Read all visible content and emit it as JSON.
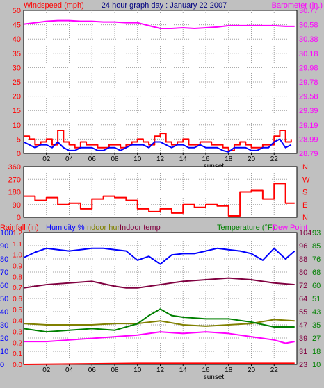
{
  "header": {
    "title_left": "Windspeed (mph)",
    "title_center": "24 hour graph day : January 22 2007",
    "title_right": "Barometer (in.)"
  },
  "colors": {
    "background": "#c0c0c0",
    "plot_bg": "#ffffff",
    "wind": "#ff0000",
    "gust": "#ff0000",
    "avg_wind": "#0000ff",
    "barometer": "#ff00ff",
    "direction": "#ff0000",
    "humidity": "#0000ff",
    "indoor_humidity": "#808000",
    "indoor_temp": "#800040",
    "temperature": "#008000",
    "dew_point": "#ff00ff",
    "rainfall": "#ff0000",
    "grid": "#a0a0a0"
  },
  "chart_data": [
    {
      "type": "line",
      "id": "wind_baro",
      "title": "24 hour graph day : January 22 2007",
      "x_ticks": [
        "02",
        "04",
        "06",
        "08",
        "10",
        "12",
        "14",
        "16",
        "18",
        "20",
        "22"
      ],
      "x_annotation": "sunset",
      "y_left": {
        "label": "Windspeed (mph)",
        "ticks": [
          "0",
          "5",
          "10",
          "15",
          "20",
          "25",
          "30",
          "35",
          "40",
          "45",
          "50"
        ],
        "lim": [
          0,
          50
        ]
      },
      "y_right": {
        "label": "Barometer (in.)",
        "ticks": [
          "28.79",
          "28.99",
          "29.19",
          "29.39",
          "29.58",
          "29.78",
          "29.98",
          "30.18",
          "30.38",
          "30.58",
          "30.77"
        ],
        "lim": [
          28.79,
          30.77
        ]
      },
      "grid": true,
      "series": [
        {
          "name": "Windspeed",
          "axis": "left",
          "x": [
            0,
            0.5,
            1,
            1.5,
            2,
            2.5,
            3,
            3.5,
            4,
            4.5,
            5,
            5.5,
            6,
            6.5,
            7,
            7.5,
            8,
            8.5,
            9,
            9.5,
            10,
            10.5,
            11,
            11.5,
            12,
            12.5,
            13,
            13.5,
            14,
            14.5,
            15,
            15.5,
            16,
            16.5,
            17,
            17.5,
            18,
            18.5,
            19,
            19.5,
            20,
            20.5,
            21,
            21.5,
            22,
            22.5,
            23,
            23.5
          ],
          "values": [
            6,
            5,
            3,
            4,
            5,
            3,
            8,
            4,
            3,
            2,
            4,
            3,
            3,
            2,
            2,
            3,
            3,
            2,
            3,
            4,
            5,
            4,
            3,
            6,
            7,
            4,
            3,
            4,
            5,
            3,
            3,
            4,
            4,
            3,
            3,
            2,
            1,
            3,
            4,
            3,
            2,
            2,
            3,
            3,
            6,
            8,
            4,
            5
          ]
        },
        {
          "name": "Avg wind",
          "axis": "left",
          "x": [
            0,
            0.5,
            1,
            1.5,
            2,
            2.5,
            3,
            3.5,
            4,
            4.5,
            5,
            5.5,
            6,
            6.5,
            7,
            7.5,
            8,
            8.5,
            9,
            9.5,
            10,
            10.5,
            11,
            11.5,
            12,
            12.5,
            13,
            13.5,
            14,
            14.5,
            15,
            15.5,
            16,
            16.5,
            17,
            17.5,
            18,
            18.5,
            19,
            19.5,
            20,
            20.5,
            21,
            21.5,
            22,
            22.5,
            23,
            23.5
          ],
          "values": [
            4,
            3,
            2,
            3,
            3,
            2,
            4,
            2,
            1,
            1,
            2,
            2,
            2,
            1,
            1,
            2,
            2,
            1,
            2,
            3,
            3,
            3,
            2,
            4,
            4,
            3,
            2,
            3,
            3,
            2,
            2,
            3,
            2,
            2,
            2,
            1,
            0.5,
            2,
            2,
            2,
            1,
            1,
            2,
            2,
            4,
            5,
            2,
            3
          ]
        },
        {
          "name": "Barometer",
          "axis": "right",
          "x": [
            0,
            1,
            2,
            3,
            4,
            5,
            6,
            7,
            8,
            9,
            10,
            11,
            12,
            13,
            14,
            15,
            16,
            17,
            18,
            19,
            20,
            21,
            22,
            23,
            23.8
          ],
          "values": [
            30.58,
            30.6,
            30.62,
            30.63,
            30.63,
            30.62,
            30.62,
            30.61,
            30.61,
            30.6,
            30.6,
            30.56,
            30.52,
            30.52,
            30.53,
            30.52,
            30.53,
            30.54,
            30.56,
            30.56,
            30.56,
            30.56,
            30.56,
            30.55,
            30.55
          ]
        }
      ]
    },
    {
      "type": "line",
      "id": "direction",
      "x_ticks": [],
      "y_left": {
        "ticks": [
          "0",
          "90",
          "180",
          "270",
          "360"
        ],
        "lim": [
          0,
          360
        ]
      },
      "y_right": {
        "ticks": [
          "N",
          "E",
          "S",
          "W",
          "N"
        ]
      },
      "grid": true,
      "series": [
        {
          "name": "Wind direction",
          "x": [
            0,
            1,
            2,
            3,
            4,
            5,
            6,
            7,
            8,
            9,
            10,
            11,
            12,
            13,
            14,
            15,
            16,
            17,
            18,
            19,
            20,
            21,
            22,
            23,
            23.8
          ],
          "values": [
            150,
            120,
            140,
            90,
            100,
            60,
            130,
            150,
            140,
            120,
            60,
            40,
            60,
            30,
            90,
            70,
            90,
            80,
            10,
            180,
            190,
            130,
            240,
            100,
            100
          ]
        }
      ]
    },
    {
      "type": "line",
      "id": "humidity_temp",
      "x_ticks": [
        "02",
        "04",
        "06",
        "08",
        "10",
        "12",
        "14",
        "16",
        "18",
        "20",
        "22"
      ],
      "x_annotation": "sunset",
      "legend": [
        "Rainfall (in)",
        "Humidity %",
        "Indoor hum",
        "Indoor temp",
        "Temperature (°F)",
        "Dew Point"
      ],
      "y_rain": {
        "label": "Rainfall (in)",
        "ticks": [
          "0.0",
          "0.1",
          "0.2",
          "0.3",
          "0.4",
          "0.5",
          "0.6",
          "0.7",
          "0.8",
          "0.9",
          "1.0",
          "1.1",
          "1.2"
        ],
        "lim": [
          0,
          1.2
        ]
      },
      "y_humidity": {
        "label": "Humidity %",
        "ticks": [
          "0",
          "10",
          "20",
          "30",
          "40",
          "50",
          "60",
          "70",
          "80",
          "90",
          "100"
        ],
        "lim": [
          0,
          100
        ]
      },
      "y_temp_outer": {
        "ticks": [
          "23",
          "31",
          "39",
          "47",
          "55",
          "64",
          "72",
          "80",
          "88",
          "96",
          "104"
        ],
        "lim": [
          23,
          104
        ]
      },
      "y_temp_inner": {
        "ticks": [
          "10",
          "18",
          "27",
          "35",
          "43",
          "51",
          "60",
          "68",
          "76",
          "85",
          "93"
        ],
        "lim": [
          10,
          93
        ]
      },
      "grid": true,
      "series": [
        {
          "name": "Humidity %",
          "axis": "humidity",
          "x": [
            0,
            1,
            2,
            3,
            4,
            5,
            6,
            7,
            8,
            9,
            10,
            11,
            12,
            13,
            14,
            15,
            16,
            17,
            18,
            19,
            20,
            21,
            22,
            23,
            23.8
          ],
          "values": [
            81,
            85,
            88,
            87,
            86,
            87,
            88,
            88,
            87,
            86,
            79,
            82,
            76,
            83,
            84,
            84,
            86,
            88,
            87,
            86,
            84,
            79,
            88,
            80,
            86
          ]
        },
        {
          "name": "Indoor hum",
          "axis": "humidity",
          "x": [
            0,
            2,
            4,
            6,
            8,
            10,
            12,
            14,
            16,
            18,
            20,
            22,
            23.8
          ],
          "values": [
            31,
            30,
            30,
            30,
            31,
            31,
            33,
            30,
            29,
            30,
            31,
            34,
            33
          ]
        },
        {
          "name": "Indoor temp",
          "axis": "temp_outer",
          "x": [
            0,
            2,
            4,
            6,
            8,
            9,
            10,
            12,
            14,
            16,
            18,
            20,
            22,
            23.8
          ],
          "values": [
            70,
            72,
            73,
            74,
            71,
            70,
            70,
            72,
            74,
            75,
            76,
            75,
            73,
            72
          ]
        },
        {
          "name": "Temperature (°F)",
          "axis": "temp_outer",
          "x": [
            0,
            2,
            4,
            6,
            8,
            9,
            10,
            11,
            12,
            13,
            14,
            16,
            18,
            20,
            22,
            23.8
          ],
          "values": [
            45,
            43,
            44,
            45,
            44,
            46,
            48,
            53,
            57,
            53,
            52,
            51,
            51,
            49,
            46,
            46
          ]
        },
        {
          "name": "Dew Point",
          "axis": "temp_outer",
          "x": [
            0,
            2,
            4,
            6,
            8,
            10,
            12,
            14,
            16,
            18,
            20,
            22,
            23,
            23.8
          ],
          "values": [
            37,
            37,
            38,
            39,
            40,
            41,
            43,
            42,
            43,
            42,
            40,
            38,
            36,
            37
          ]
        },
        {
          "name": "Rainfall (in)",
          "axis": "rain",
          "x": [
            0,
            10,
            23.8
          ],
          "values": [
            0,
            0.01,
            0.01
          ]
        }
      ]
    }
  ]
}
